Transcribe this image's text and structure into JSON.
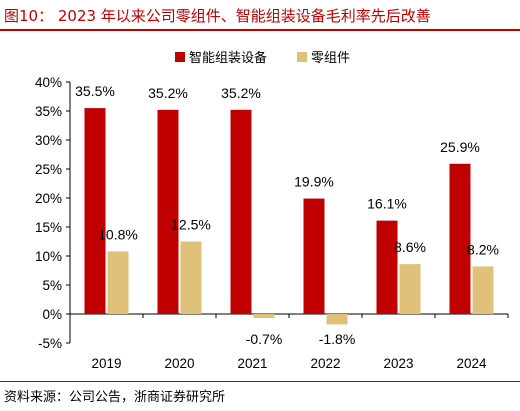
{
  "figure": {
    "title": "图10：  2023 年以来公司零组件、智能组装设备毛利率先后改善",
    "source": "资料来源：公司公告，浙商证券研究所"
  },
  "colors": {
    "accent": "#c00000",
    "series_equipment": "#c00000",
    "series_components": "#e0c17a"
  },
  "chart_data": {
    "type": "bar",
    "categories": [
      "2019",
      "2020",
      "2021",
      "2022",
      "2023",
      "2024"
    ],
    "series": [
      {
        "name": "智能组装设备",
        "values": [
          35.5,
          35.2,
          35.2,
          19.9,
          16.1,
          25.9
        ],
        "labels": [
          "35.5%",
          "35.2%",
          "35.2%",
          "19.9%",
          "16.1%",
          "25.9%"
        ]
      },
      {
        "name": "零组件",
        "values": [
          10.8,
          12.5,
          -0.7,
          -1.8,
          8.6,
          8.2
        ],
        "labels": [
          "10.8%",
          "12.5%",
          "-0.7%",
          "-1.8%",
          "8.6%",
          "8.2%"
        ]
      }
    ],
    "ylim": [
      -5,
      40
    ],
    "yticks": [
      "-5%",
      "0%",
      "5%",
      "10%",
      "15%",
      "20%",
      "25%",
      "30%",
      "35%",
      "40%"
    ],
    "ytick_values": [
      -5,
      0,
      5,
      10,
      15,
      20,
      25,
      30,
      35,
      40
    ],
    "legend_position": "top-center",
    "grid": false
  }
}
